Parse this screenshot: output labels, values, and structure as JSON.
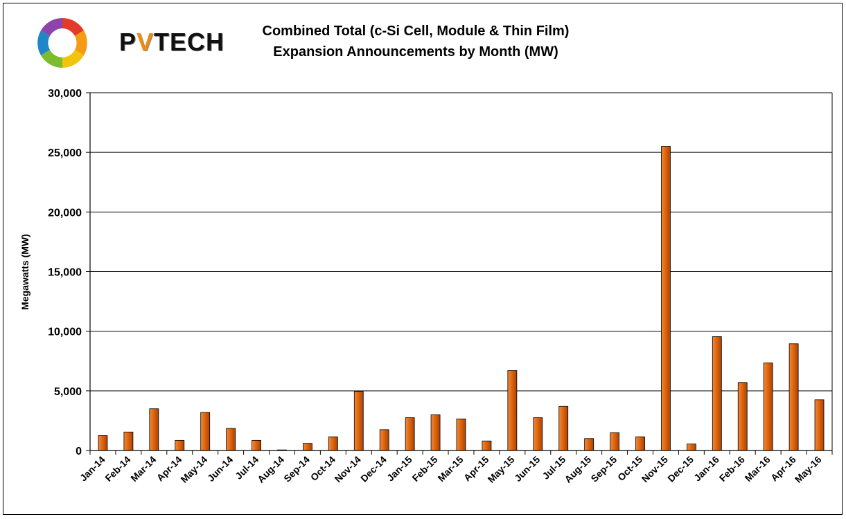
{
  "logo": {
    "text_prefix": "P",
    "text_v": "V",
    "text_suffix": "TECH"
  },
  "chart_data": {
    "type": "bar",
    "title": "Combined Total (c-Si Cell, Module & Thin Film)",
    "subtitle": "Expansion Announcements by Month (MW)",
    "xlabel": "",
    "ylabel": "Megawatts (MW)",
    "ylim": [
      0,
      30000
    ],
    "yticks": [
      0,
      5000,
      10000,
      15000,
      20000,
      25000,
      30000
    ],
    "ytick_labels": [
      "0",
      "5,000",
      "10,000",
      "15,000",
      "20,000",
      "25,000",
      "30,000"
    ],
    "grid": true,
    "bar_color": "#e0660c",
    "categories": [
      "Jan-14",
      "Feb-14",
      "Mar-14",
      "Apr-14",
      "May-14",
      "Jun-14",
      "Jul-14",
      "Aug-14",
      "Sep-14",
      "Oct-14",
      "Nov-14",
      "Dec-14",
      "Jan-15",
      "Feb-15",
      "Mar-15",
      "Apr-15",
      "May-15",
      "Jun-15",
      "Jul-15",
      "Aug-15",
      "Sep-15",
      "Oct-15",
      "Nov-15",
      "Dec-15",
      "Jan-16",
      "Feb-16",
      "Mar-16",
      "Apr-16",
      "May-16"
    ],
    "values": [
      1250,
      1550,
      3500,
      850,
      3200,
      1850,
      850,
      50,
      600,
      1150,
      4950,
      1750,
      2750,
      3000,
      2650,
      800,
      6700,
      2750,
      3700,
      1000,
      1500,
      1150,
      25500,
      550,
      9550,
      5700,
      7350,
      8950,
      4250
    ]
  }
}
